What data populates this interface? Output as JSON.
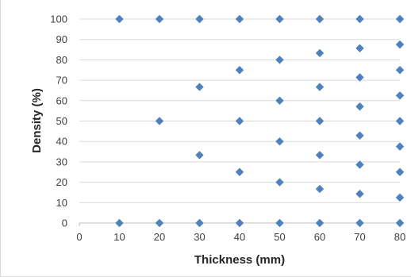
{
  "chart_data": {
    "type": "scatter",
    "title": "",
    "xlabel": "Thickness (mm)",
    "ylabel": "Density (%)",
    "xlim": [
      0,
      80
    ],
    "ylim": [
      0,
      100
    ],
    "x_ticks": [
      "0",
      "10",
      "20",
      "30",
      "40",
      "50",
      "60",
      "70",
      "80"
    ],
    "y_ticks": [
      "0",
      "10",
      "20",
      "30",
      "40",
      "50",
      "60",
      "70",
      "80",
      "90",
      "100"
    ],
    "grid": "horizontal",
    "legend": "none",
    "marker": "diamond",
    "marker_color": "#4f81bd",
    "points": [
      {
        "x": 10,
        "y": 0
      },
      {
        "x": 10,
        "y": 100
      },
      {
        "x": 20,
        "y": 0
      },
      {
        "x": 20,
        "y": 50
      },
      {
        "x": 20,
        "y": 100
      },
      {
        "x": 30,
        "y": 0
      },
      {
        "x": 30,
        "y": 33.3
      },
      {
        "x": 30,
        "y": 66.7
      },
      {
        "x": 30,
        "y": 100
      },
      {
        "x": 40,
        "y": 0
      },
      {
        "x": 40,
        "y": 25
      },
      {
        "x": 40,
        "y": 50
      },
      {
        "x": 40,
        "y": 75
      },
      {
        "x": 40,
        "y": 100
      },
      {
        "x": 50,
        "y": 0
      },
      {
        "x": 50,
        "y": 20
      },
      {
        "x": 50,
        "y": 40
      },
      {
        "x": 50,
        "y": 60
      },
      {
        "x": 50,
        "y": 80
      },
      {
        "x": 50,
        "y": 100
      },
      {
        "x": 60,
        "y": 0
      },
      {
        "x": 60,
        "y": 16.7
      },
      {
        "x": 60,
        "y": 33.3
      },
      {
        "x": 60,
        "y": 50
      },
      {
        "x": 60,
        "y": 66.7
      },
      {
        "x": 60,
        "y": 83.3
      },
      {
        "x": 60,
        "y": 100
      },
      {
        "x": 70,
        "y": 0
      },
      {
        "x": 70,
        "y": 14.3
      },
      {
        "x": 70,
        "y": 28.6
      },
      {
        "x": 70,
        "y": 42.9
      },
      {
        "x": 70,
        "y": 57.1
      },
      {
        "x": 70,
        "y": 71.4
      },
      {
        "x": 70,
        "y": 85.7
      },
      {
        "x": 70,
        "y": 100
      },
      {
        "x": 80,
        "y": 0
      },
      {
        "x": 80,
        "y": 12.5
      },
      {
        "x": 80,
        "y": 25
      },
      {
        "x": 80,
        "y": 37.5
      },
      {
        "x": 80,
        "y": 50
      },
      {
        "x": 80,
        "y": 62.5
      },
      {
        "x": 80,
        "y": 75
      },
      {
        "x": 80,
        "y": 87.5
      },
      {
        "x": 80,
        "y": 100
      }
    ]
  }
}
